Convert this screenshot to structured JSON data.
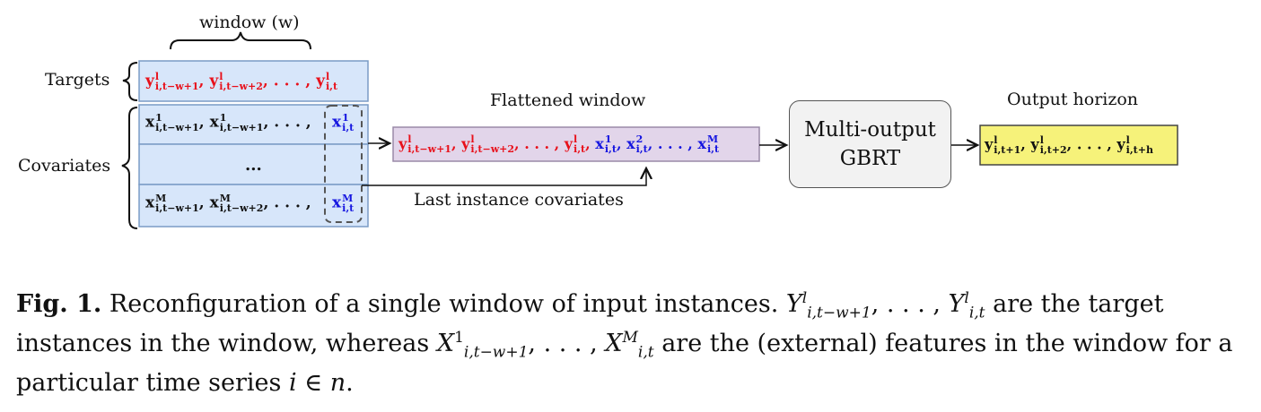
{
  "labels": {
    "window": "window (w)",
    "targets": "Targets",
    "covariates": "Covariates",
    "flattened_window": "Flattened window",
    "last_instance_covariates": "Last instance covariates",
    "output_horizon": "Output horizon",
    "model_line1": "Multi-output",
    "model_line2": "GBRT",
    "middle_dots": "..."
  },
  "colors": {
    "targets_text": "#e8101a",
    "covariates_last_text": "#1515e0",
    "table_fill": "#d7e6fa",
    "table_border": "#7a9cc6",
    "flattened_fill": "#e2d5ea",
    "output_fill": "#f6f27a",
    "model_fill": "#f2f2f2"
  },
  "math": {
    "targets_row": [
      "y",
      "l",
      "i,t−w+1",
      ", ",
      "y",
      "l",
      "i,t−w+2",
      ", . . . , ",
      "y",
      "l",
      "i,t"
    ],
    "cov_row1_a": [
      "x",
      "1",
      "i,t−w+1"
    ],
    "cov_row1_b": [
      "x",
      "1",
      "i,t−w+1"
    ],
    "cov_row1_c": [
      "x",
      "1",
      "i,t"
    ],
    "cov_rowM_a": [
      "x",
      "M",
      "i,t−w+1"
    ],
    "cov_rowM_b": [
      "x",
      "M",
      "i,t−w+2"
    ],
    "cov_rowM_c": [
      "x",
      "M",
      "i,t"
    ],
    "sep_comma": ",",
    "sep_dots": ", . . . ,"
  },
  "caption": {
    "fig_label": "Fig. 1.",
    "text_1": "Reconfiguration of a single window of input instances.",
    "text_2": "are the target instances in the window, whereas",
    "text_3": "are the (external) features in the window for a particular time series",
    "text_4": "."
  }
}
